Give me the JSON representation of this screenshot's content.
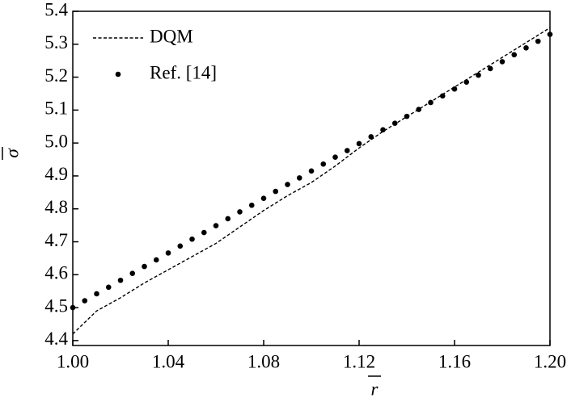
{
  "chart_data": {
    "type": "line-scatter",
    "xlabel": "r",
    "ylabel": "σ",
    "xlim": [
      1.0,
      1.2
    ],
    "ylim": [
      4.385,
      5.4
    ],
    "xticks": [
      {
        "value": 1.0,
        "label": "1.00"
      },
      1.04,
      1.08,
      1.12,
      1.16,
      {
        "value": 1.2,
        "label": "1.20"
      }
    ],
    "yticks": [
      4.4,
      4.5,
      4.6,
      4.7,
      4.8,
      4.9,
      {
        "value": 5.0,
        "label": "5.0"
      },
      5.1,
      5.2,
      5.3,
      5.4
    ],
    "legend": "upper left",
    "series": [
      {
        "name": "DQM",
        "kind": "line",
        "style": "dashed",
        "color": "#000000",
        "x": [
          1.0,
          1.01,
          1.02,
          1.03,
          1.04,
          1.05,
          1.06,
          1.07,
          1.08,
          1.09,
          1.1,
          1.11,
          1.12,
          1.13,
          1.14,
          1.15,
          1.16,
          1.17,
          1.18,
          1.19,
          1.2
        ],
        "values": [
          4.42,
          4.49,
          4.53,
          4.575,
          4.615,
          4.655,
          4.695,
          4.745,
          4.795,
          4.84,
          4.88,
          4.93,
          4.985,
          5.035,
          5.08,
          5.125,
          5.17,
          5.215,
          5.26,
          5.305,
          5.35
        ]
      },
      {
        "name": "Ref. [14]",
        "kind": "scatter",
        "color": "#000000",
        "x": [
          1.0,
          1.005,
          1.01,
          1.015,
          1.02,
          1.025,
          1.03,
          1.035,
          1.04,
          1.045,
          1.05,
          1.055,
          1.06,
          1.065,
          1.07,
          1.075,
          1.08,
          1.085,
          1.09,
          1.095,
          1.1,
          1.105,
          1.11,
          1.115,
          1.12,
          1.125,
          1.13,
          1.135,
          1.14,
          1.145,
          1.15,
          1.155,
          1.16,
          1.165,
          1.17,
          1.175,
          1.18,
          1.185,
          1.19,
          1.195,
          1.2
        ],
        "values": [
          4.5,
          4.521,
          4.542,
          4.562,
          4.583,
          4.604,
          4.625,
          4.645,
          4.666,
          4.687,
          4.708,
          4.728,
          4.749,
          4.77,
          4.791,
          4.811,
          4.832,
          4.853,
          4.874,
          4.894,
          4.915,
          4.936,
          4.957,
          4.977,
          4.998,
          5.019,
          5.04,
          5.06,
          5.081,
          5.102,
          5.123,
          5.143,
          5.164,
          5.185,
          5.206,
          5.226,
          5.247,
          5.268,
          5.289,
          5.309,
          5.33
        ]
      }
    ]
  }
}
